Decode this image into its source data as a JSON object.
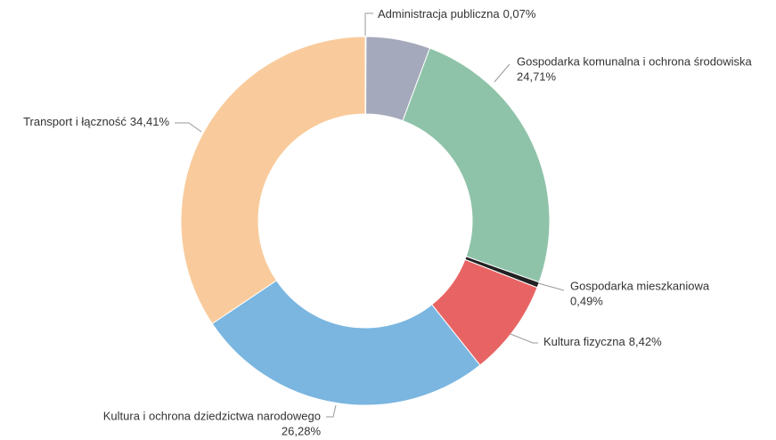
{
  "chart_data": {
    "type": "donut",
    "categories": [
      "Administracja publiczna",
      null,
      "Gospodarka komunalna i ochrona środowiska",
      "Gospodarka mieszkaniowa",
      "Kultura fizyczna",
      "Kultura i ochrona dziedzictwa narodowego",
      "Transport i łączność"
    ],
    "values": [
      0.07,
      5.62,
      24.71,
      0.49,
      8.42,
      26.28,
      34.41
    ],
    "value_labels": [
      "0,07%",
      null,
      "24,71%",
      "0,49%",
      "8,42%",
      "26,28%",
      "34,41%"
    ],
    "colors": [
      "#555a6e",
      "#a4a9bb",
      "#8fc3a9",
      "#222222",
      "#e86464",
      "#7ab6e0",
      "#f9cb9c"
    ]
  }
}
